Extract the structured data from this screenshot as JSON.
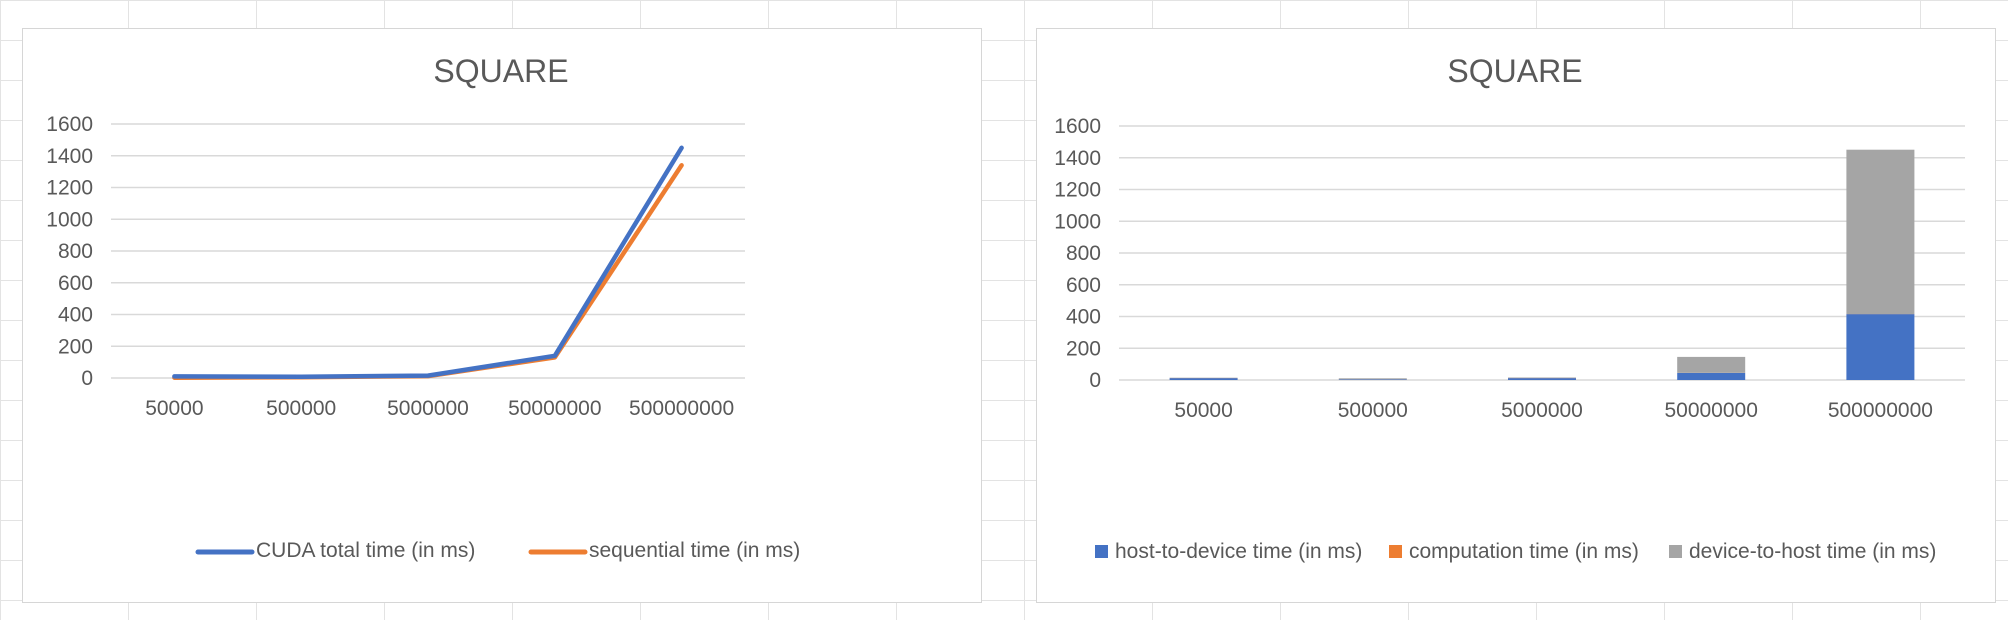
{
  "chart_data": [
    {
      "type": "line",
      "title": "SQUARE",
      "xlabel": "",
      "ylabel": "",
      "categories": [
        "50000",
        "500000",
        "5000000",
        "50000000",
        "500000000"
      ],
      "series": [
        {
          "name": "CUDA total time (in ms)",
          "color": "#4472c4",
          "values": [
            10,
            8,
            15,
            140,
            1450
          ]
        },
        {
          "name": "sequential time (in ms)",
          "color": "#ed7d31",
          "values": [
            2,
            5,
            12,
            130,
            1340
          ]
        }
      ],
      "y_ticks": [
        "0",
        "200",
        "400",
        "600",
        "800",
        "1000",
        "1200",
        "1400",
        "1600"
      ],
      "ylim": [
        0,
        1600
      ],
      "grid": true,
      "legend_position": "bottom"
    },
    {
      "type": "bar",
      "stacked": true,
      "title": "SQUARE",
      "xlabel": "",
      "ylabel": "",
      "categories": [
        "50000",
        "500000",
        "5000000",
        "50000000",
        "500000000"
      ],
      "series": [
        {
          "name": "host-to-device time (in ms)",
          "color": "#4472c4",
          "values": [
            12,
            3,
            12,
            45,
            415
          ]
        },
        {
          "name": "computation time (in ms)",
          "color": "#ed7d31",
          "values": [
            0.5,
            0.5,
            0.5,
            0.5,
            0.5
          ]
        },
        {
          "name": "device-to-host time (in ms)",
          "color": "#a5a5a5",
          "values": [
            2,
            7,
            3,
            100,
            1035
          ]
        }
      ],
      "y_ticks": [
        "0",
        "200",
        "400",
        "600",
        "800",
        "1000",
        "1200",
        "1400",
        "1600"
      ],
      "ylim": [
        0,
        1600
      ],
      "grid": true,
      "legend_position": "bottom"
    }
  ]
}
